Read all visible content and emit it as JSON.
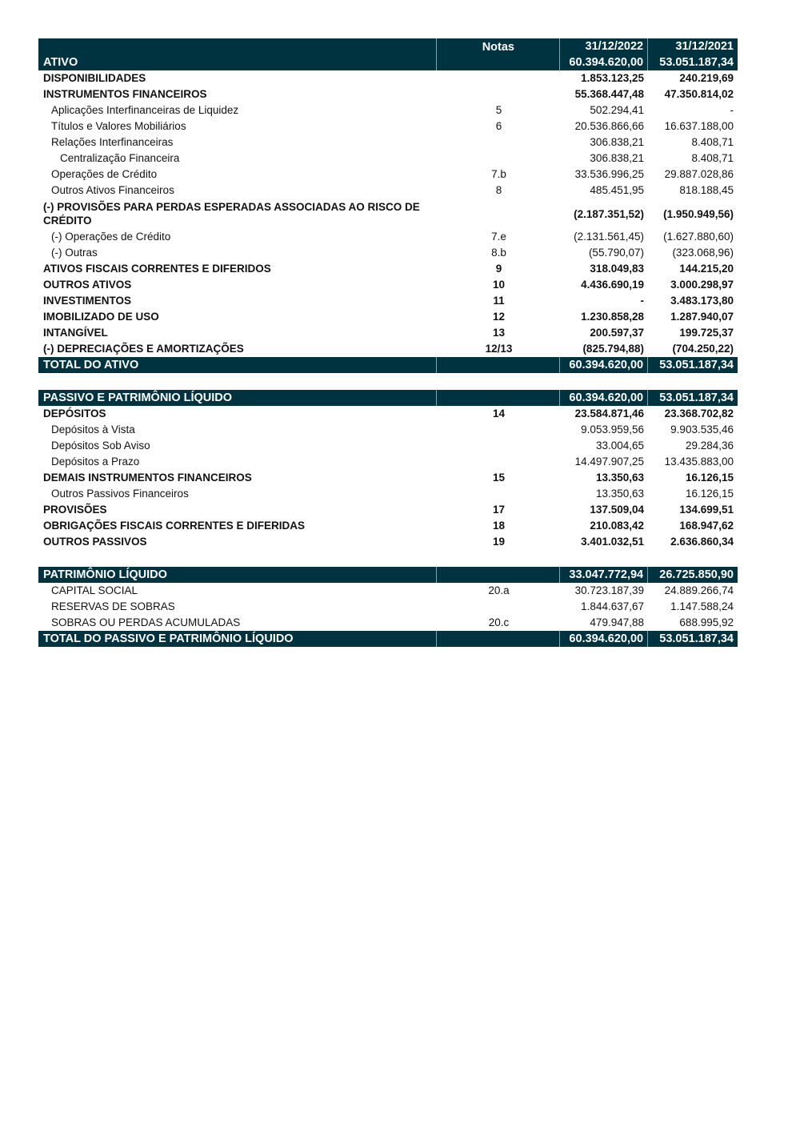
{
  "theme": {
    "header_bg": "#003340",
    "header_text": "#ffffff"
  },
  "header": {
    "label": "ATIVO",
    "notes_label": "Notas",
    "date_2022": "31/12/2022",
    "date_2021": "31/12/2021",
    "total_2022": "60.394.620,00",
    "total_2021": "53.051.187,34"
  },
  "rows": [
    {
      "label": "DISPONIBILIDADES",
      "note": "",
      "v2022": "1.853.123,25",
      "v2021": "240.219,69",
      "style": "bold"
    },
    {
      "label": "INSTRUMENTOS FINANCEIROS",
      "note": "",
      "v2022": "55.368.447,48",
      "v2021": "47.350.814,02",
      "style": "bold"
    },
    {
      "label": "Aplicações Interfinanceiras de Liquidez",
      "note": "5",
      "v2022": "502.294,41",
      "v2021": "-",
      "style": "l1"
    },
    {
      "label": "Títulos e Valores Mobiliários",
      "note": "6",
      "v2022": "20.536.866,66",
      "v2021": "16.637.188,00",
      "style": "l1"
    },
    {
      "label": "Relações Interfinanceiras",
      "note": "",
      "v2022": "306.838,21",
      "v2021": "8.408,71",
      "style": "l1"
    },
    {
      "label": "Centralização Financeira",
      "note": "",
      "v2022": "306.838,21",
      "v2021": "8.408,71",
      "style": "l2"
    },
    {
      "label": "Operações de Crédito",
      "note": "7.b",
      "v2022": "33.536.996,25",
      "v2021": "29.887.028,86",
      "style": "l1"
    },
    {
      "label": "Outros Ativos Financeiros",
      "note": "8",
      "v2022": "485.451,95",
      "v2021": "818.188,45",
      "style": "l1"
    },
    {
      "label": "(-) PROVISÕES PARA PERDAS ESPERADAS ASSOCIADAS AO RISCO DE CRÉDITO",
      "note": "",
      "v2022": "(2.187.351,52)",
      "v2021": "(1.950.949,56)",
      "style": "bold tall"
    },
    {
      "label": "(-) Operações de Crédito",
      "note": "7.e",
      "v2022": "(2.131.561,45)",
      "v2021": "(1.627.880,60)",
      "style": "l1"
    },
    {
      "label": "(-) Outras",
      "note": "8.b",
      "v2022": "(55.790,07)",
      "v2021": "(323.068,96)",
      "style": "l1"
    },
    {
      "label": "ATIVOS FISCAIS CORRENTES E DIFERIDOS",
      "note": "9",
      "v2022": "318.049,83",
      "v2021": "144.215,20",
      "style": "bold"
    },
    {
      "label": "OUTROS ATIVOS",
      "note": "10",
      "v2022": "4.436.690,19",
      "v2021": "3.000.298,97",
      "style": "bold"
    },
    {
      "label": "INVESTIMENTOS",
      "note": "11",
      "v2022": "-",
      "v2021": "3.483.173,80",
      "style": "bold"
    },
    {
      "label": "IMOBILIZADO DE USO",
      "note": "12",
      "v2022": "1.230.858,28",
      "v2021": "1.287.940,07",
      "style": "bold"
    },
    {
      "label": "INTANGÍVEL",
      "note": "13",
      "v2022": "200.597,37",
      "v2021": "199.725,37",
      "style": "bold"
    },
    {
      "label": "(-) DEPRECIAÇÕES E AMORTIZAÇÕES",
      "note": "12/13",
      "v2022": "(825.794,88)",
      "v2021": "(704.250,22)",
      "style": "bold"
    },
    {
      "label": "TOTAL DO ATIVO",
      "note": "",
      "v2022": "60.394.620,00",
      "v2021": "53.051.187,34",
      "style": "dark"
    },
    {
      "style": "spacer"
    },
    {
      "label": "PASSIVO E PATRIMÔNIO LÍQUIDO",
      "note": "",
      "v2022": "60.394.620,00",
      "v2021": "53.051.187,34",
      "style": "dark"
    },
    {
      "label": "DEPÓSITOS",
      "note": "14",
      "v2022": "23.584.871,46",
      "v2021": "23.368.702,82",
      "style": "bold"
    },
    {
      "label": "Depósitos à Vista",
      "note": "",
      "v2022": "9.053.959,56",
      "v2021": "9.903.535,46",
      "style": "l1"
    },
    {
      "label": "Depósitos Sob Aviso",
      "note": "",
      "v2022": "33.004,65",
      "v2021": "29.284,36",
      "style": "l1"
    },
    {
      "label": "Depósitos a Prazo",
      "note": "",
      "v2022": "14.497.907,25",
      "v2021": "13.435.883,00",
      "style": "l1"
    },
    {
      "label": "DEMAIS INSTRUMENTOS FINANCEIROS",
      "note": "15",
      "v2022": "13.350,63",
      "v2021": "16.126,15",
      "style": "bold"
    },
    {
      "label": "Outros Passivos Financeiros",
      "note": "",
      "v2022": "13.350,63",
      "v2021": "16.126,15",
      "style": "l1"
    },
    {
      "label": "PROVISÕES",
      "note": "17",
      "v2022": "137.509,04",
      "v2021": "134.699,51",
      "style": "bold"
    },
    {
      "label": "OBRIGAÇÕES FISCAIS CORRENTES E DIFERIDAS",
      "note": "18",
      "v2022": "210.083,42",
      "v2021": "168.947,62",
      "style": "bold"
    },
    {
      "label": "OUTROS PASSIVOS",
      "note": "19",
      "v2022": "3.401.032,51",
      "v2021": "2.636.860,34",
      "style": "bold"
    },
    {
      "style": "spacer"
    },
    {
      "label": "PATRIMÔNIO LÍQUIDO",
      "note": "",
      "v2022": "33.047.772,94",
      "v2021": "26.725.850,90",
      "style": "dark"
    },
    {
      "label": "CAPITAL SOCIAL",
      "note": "20.a",
      "v2022": "30.723.187,39",
      "v2021": "24.889.266,74",
      "style": "l1"
    },
    {
      "label": "RESERVAS DE SOBRAS",
      "note": "",
      "v2022": "1.844.637,67",
      "v2021": "1.147.588,24",
      "style": "l1"
    },
    {
      "label": "SOBRAS OU PERDAS ACUMULADAS",
      "note": "20.c",
      "v2022": "479.947,88",
      "v2021": "688.995,92",
      "style": "l1"
    },
    {
      "label": "TOTAL DO PASSIVO E PATRIMÔNIO LÍQUIDO",
      "note": "",
      "v2022": "60.394.620,00",
      "v2021": "53.051.187,34",
      "style": "dark"
    }
  ]
}
